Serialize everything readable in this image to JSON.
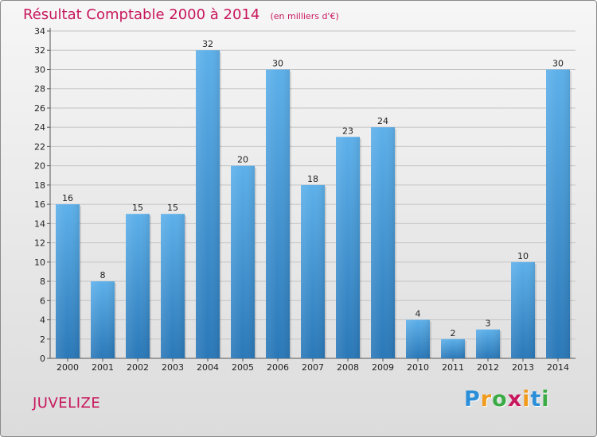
{
  "header": {
    "title": "Résultat Comptable 2000 à 2014",
    "unit": "(en milliers d'€)"
  },
  "footer": {
    "commune": "JUVELIZE",
    "brand_letters": [
      "P",
      "r",
      "o",
      "x",
      "i",
      "t",
      "i"
    ]
  },
  "colors": {
    "title": "#c8175d",
    "bar_top": "#5db0ea",
    "bar_bottom": "#2a78b8",
    "brand": [
      "#2a8fd8",
      "#f29a1c",
      "#3aab45",
      "#c8175d",
      "#f29a1c",
      "#2a8fd8",
      "#3aab45"
    ]
  },
  "chart_data": {
    "type": "bar",
    "title": "Résultat Comptable 2000 à 2014",
    "xlabel": "",
    "ylabel": "",
    "ylim": [
      0,
      34
    ],
    "yticks": [
      "0",
      "2",
      "4",
      "6",
      "8",
      "10",
      "12",
      "14",
      "16",
      "18",
      "20",
      "22",
      "24",
      "26",
      "28",
      "30",
      "32",
      "34"
    ],
    "grid": true,
    "categories": [
      "2000",
      "2001",
      "2002",
      "2003",
      "2004",
      "2005",
      "2006",
      "2007",
      "2008",
      "2009",
      "2010",
      "2011",
      "2012",
      "2013",
      "2014"
    ],
    "values": [
      16,
      8,
      15,
      15,
      32,
      20,
      30,
      18,
      23,
      24,
      4,
      2,
      3,
      10,
      30
    ],
    "value_labels": [
      "16",
      "8",
      "15",
      "15",
      "32",
      "20",
      "30",
      "18",
      "23",
      "24",
      "4",
      "2",
      "3",
      "10",
      "30"
    ]
  }
}
